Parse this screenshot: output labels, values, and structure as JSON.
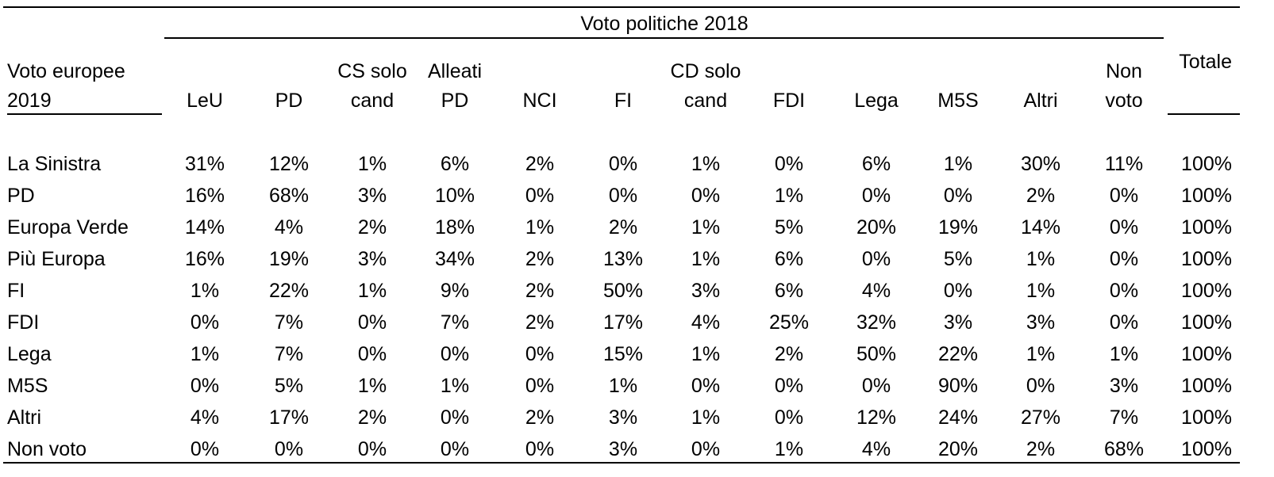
{
  "chart_data": {
    "type": "table",
    "title": "",
    "group_header": "Voto politiche 2018",
    "row_header": [
      "Voto europee",
      "2019"
    ],
    "columns": [
      [
        "LeU"
      ],
      [
        "PD"
      ],
      [
        "CS solo",
        "cand"
      ],
      [
        "Alleati",
        "PD"
      ],
      [
        "NCI"
      ],
      [
        "FI"
      ],
      [
        "CD solo",
        "cand"
      ],
      [
        "FDI"
      ],
      [
        "Lega"
      ],
      [
        "M5S"
      ],
      [
        "Altri"
      ],
      [
        "Non",
        "voto"
      ]
    ],
    "total_header": "Totale",
    "rows": [
      {
        "label": "La Sinistra",
        "values": [
          "31%",
          "12%",
          "1%",
          "6%",
          "2%",
          "0%",
          "1%",
          "0%",
          "6%",
          "1%",
          "30%",
          "11%"
        ],
        "total": "100%"
      },
      {
        "label": "PD",
        "values": [
          "16%",
          "68%",
          "3%",
          "10%",
          "0%",
          "0%",
          "0%",
          "1%",
          "0%",
          "0%",
          "2%",
          "0%"
        ],
        "total": "100%"
      },
      {
        "label": "Europa Verde",
        "values": [
          "14%",
          "4%",
          "2%",
          "18%",
          "1%",
          "2%",
          "1%",
          "5%",
          "20%",
          "19%",
          "14%",
          "0%"
        ],
        "total": "100%"
      },
      {
        "label": "Più Europa",
        "values": [
          "16%",
          "19%",
          "3%",
          "34%",
          "2%",
          "13%",
          "1%",
          "6%",
          "0%",
          "5%",
          "1%",
          "0%"
        ],
        "total": "100%"
      },
      {
        "label": "FI",
        "values": [
          "1%",
          "22%",
          "1%",
          "9%",
          "2%",
          "50%",
          "3%",
          "6%",
          "4%",
          "0%",
          "1%",
          "0%"
        ],
        "total": "100%"
      },
      {
        "label": "FDI",
        "values": [
          "0%",
          "7%",
          "0%",
          "7%",
          "2%",
          "17%",
          "4%",
          "25%",
          "32%",
          "3%",
          "3%",
          "0%"
        ],
        "total": "100%"
      },
      {
        "label": "Lega",
        "values": [
          "1%",
          "7%",
          "0%",
          "0%",
          "0%",
          "15%",
          "1%",
          "2%",
          "50%",
          "22%",
          "1%",
          "1%"
        ],
        "total": "100%"
      },
      {
        "label": "M5S",
        "values": [
          "0%",
          "5%",
          "1%",
          "1%",
          "0%",
          "1%",
          "0%",
          "0%",
          "0%",
          "90%",
          "0%",
          "3%"
        ],
        "total": "100%"
      },
      {
        "label": "Altri",
        "values": [
          "4%",
          "17%",
          "2%",
          "0%",
          "2%",
          "3%",
          "1%",
          "0%",
          "12%",
          "24%",
          "27%",
          "7%"
        ],
        "total": "100%"
      },
      {
        "label": "Non voto",
        "values": [
          "0%",
          "0%",
          "0%",
          "0%",
          "0%",
          "3%",
          "0%",
          "1%",
          "4%",
          "20%",
          "2%",
          "68%"
        ],
        "total": "100%"
      }
    ]
  }
}
